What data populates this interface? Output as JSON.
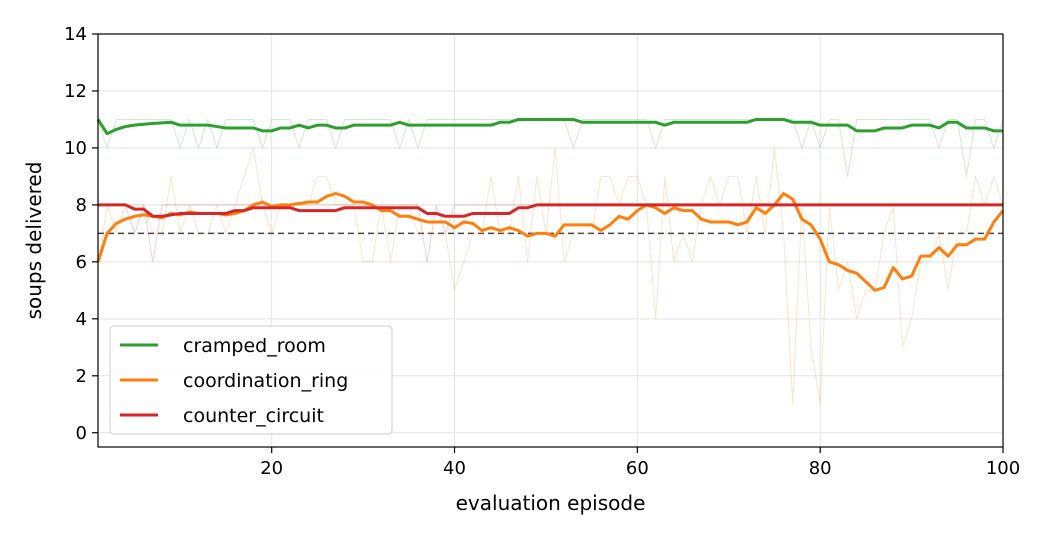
{
  "chart_data": {
    "type": "line",
    "title": "",
    "xlabel": "evaluation episode",
    "ylabel": "soups delivered",
    "xlim": [
      1,
      100
    ],
    "ylim": [
      -0.5,
      14
    ],
    "xticks": [
      20,
      40,
      60,
      80,
      100
    ],
    "yticks": [
      0,
      2,
      4,
      6,
      8,
      10,
      12,
      14
    ],
    "grid": true,
    "legend_position": "lower-left",
    "reference_line": {
      "y": 7,
      "style": "dashed",
      "color": "#444444"
    },
    "x": [
      1,
      2,
      3,
      4,
      5,
      6,
      7,
      8,
      9,
      10,
      11,
      12,
      13,
      14,
      15,
      16,
      17,
      18,
      19,
      20,
      21,
      22,
      23,
      24,
      25,
      26,
      27,
      28,
      29,
      30,
      31,
      32,
      33,
      34,
      35,
      36,
      37,
      38,
      39,
      40,
      41,
      42,
      43,
      44,
      45,
      46,
      47,
      48,
      49,
      50,
      51,
      52,
      53,
      54,
      55,
      56,
      57,
      58,
      59,
      60,
      61,
      62,
      63,
      64,
      65,
      66,
      67,
      68,
      69,
      70,
      71,
      72,
      73,
      74,
      75,
      76,
      77,
      78,
      79,
      80,
      81,
      82,
      83,
      84,
      85,
      86,
      87,
      88,
      89,
      90,
      91,
      92,
      93,
      94,
      95,
      96,
      97,
      98,
      99,
      100
    ],
    "series": [
      {
        "name": "cramped_room",
        "color": "#2ca02c",
        "smoothed": [
          11.0,
          10.5,
          10.65,
          10.75,
          10.8,
          10.83,
          10.86,
          10.88,
          10.9,
          10.8,
          10.8,
          10.8,
          10.8,
          10.75,
          10.7,
          10.7,
          10.7,
          10.7,
          10.6,
          10.6,
          10.7,
          10.7,
          10.8,
          10.7,
          10.8,
          10.8,
          10.7,
          10.7,
          10.8,
          10.8,
          10.8,
          10.8,
          10.8,
          10.9,
          10.8,
          10.8,
          10.8,
          10.8,
          10.8,
          10.8,
          10.8,
          10.8,
          10.8,
          10.8,
          10.9,
          10.9,
          11.0,
          11.0,
          11.0,
          11.0,
          11.0,
          11.0,
          11.0,
          10.9,
          10.9,
          10.9,
          10.9,
          10.9,
          10.9,
          10.9,
          10.9,
          10.9,
          10.8,
          10.9,
          10.9,
          10.9,
          10.9,
          10.9,
          10.9,
          10.9,
          10.9,
          10.9,
          11.0,
          11.0,
          11.0,
          11.0,
          10.9,
          10.9,
          10.9,
          10.8,
          10.8,
          10.8,
          10.8,
          10.6,
          10.6,
          10.6,
          10.7,
          10.7,
          10.7,
          10.8,
          10.8,
          10.8,
          10.7,
          10.9,
          10.9,
          10.7,
          10.7,
          10.7,
          10.6,
          10.6
        ],
        "raw": [
          11,
          10,
          11,
          11,
          11,
          11,
          11,
          11,
          11,
          10,
          11,
          10,
          11,
          10,
          11,
          11,
          11,
          11,
          10,
          11,
          11,
          11,
          10,
          11,
          11,
          11,
          10,
          11,
          11,
          11,
          11,
          11,
          11,
          10,
          11,
          10,
          11,
          11,
          11,
          11,
          11,
          11,
          11,
          11,
          11,
          11,
          11,
          11,
          11,
          11,
          11,
          11,
          10,
          11,
          11,
          11,
          11,
          11,
          11,
          11,
          11,
          10,
          11,
          11,
          11,
          11,
          11,
          11,
          11,
          11,
          11,
          11,
          11,
          11,
          11,
          11,
          11,
          10,
          11,
          10,
          11,
          11,
          9,
          11,
          11,
          11,
          11,
          11,
          11,
          11,
          11,
          11,
          10,
          11,
          11,
          9,
          11,
          11,
          10,
          11
        ]
      },
      {
        "name": "coordination_ring",
        "color": "#ff7f0e",
        "smoothed": [
          6.0,
          7.0,
          7.35,
          7.5,
          7.6,
          7.65,
          7.6,
          7.55,
          7.7,
          7.65,
          7.75,
          7.7,
          7.7,
          7.7,
          7.65,
          7.7,
          7.8,
          8.0,
          8.1,
          7.95,
          8.0,
          8.0,
          8.05,
          8.1,
          8.1,
          8.3,
          8.4,
          8.3,
          8.1,
          8.1,
          8.0,
          7.8,
          7.8,
          7.6,
          7.6,
          7.5,
          7.4,
          7.4,
          7.4,
          7.2,
          7.4,
          7.35,
          7.1,
          7.2,
          7.1,
          7.2,
          7.1,
          6.9,
          7.0,
          7.0,
          6.9,
          7.3,
          7.3,
          7.3,
          7.3,
          7.1,
          7.3,
          7.6,
          7.5,
          7.8,
          8.0,
          7.9,
          7.7,
          7.9,
          7.8,
          7.8,
          7.5,
          7.4,
          7.4,
          7.4,
          7.3,
          7.4,
          7.9,
          7.7,
          8.0,
          8.4,
          8.2,
          7.5,
          7.3,
          6.8,
          6.0,
          5.9,
          5.7,
          5.6,
          5.3,
          5.0,
          5.1,
          5.8,
          5.4,
          5.5,
          6.2,
          6.2,
          6.5,
          6.2,
          6.6,
          6.6,
          6.8,
          6.8,
          7.4,
          7.8
        ],
        "raw": [
          6,
          8,
          7,
          8,
          8,
          8,
          7,
          7,
          9,
          7,
          8,
          7,
          7,
          8,
          7,
          8,
          9,
          10,
          8,
          7,
          8,
          8,
          8,
          8,
          9,
          9,
          8,
          8,
          8,
          6,
          6,
          8,
          6,
          8,
          8,
          7,
          7,
          7,
          7,
          5,
          6,
          7,
          7,
          9,
          7,
          7,
          9,
          6,
          9,
          7,
          10,
          6,
          7,
          7,
          7,
          9,
          9,
          8,
          9,
          9,
          8,
          4,
          9,
          6,
          7,
          6,
          8,
          9,
          8,
          9,
          9,
          7,
          9,
          7,
          10,
          7,
          1,
          8,
          3,
          1,
          8,
          5,
          6,
          4,
          5,
          5,
          7,
          8,
          3,
          4,
          6,
          6,
          7,
          5,
          7,
          7,
          9,
          8,
          9,
          8
        ]
      },
      {
        "name": "counter_circuit",
        "color": "#d62728",
        "smoothed": [
          8.0,
          8.0,
          8.0,
          8.0,
          7.85,
          7.85,
          7.6,
          7.6,
          7.65,
          7.7,
          7.7,
          7.7,
          7.7,
          7.7,
          7.7,
          7.8,
          7.8,
          7.9,
          7.9,
          7.9,
          7.9,
          7.9,
          7.8,
          7.8,
          7.8,
          7.8,
          7.8,
          7.9,
          7.9,
          7.9,
          7.9,
          7.9,
          7.9,
          7.9,
          7.9,
          7.9,
          7.7,
          7.7,
          7.6,
          7.6,
          7.6,
          7.7,
          7.7,
          7.7,
          7.7,
          7.7,
          7.9,
          7.9,
          8.0,
          8.0,
          8.0,
          8.0,
          8.0,
          8.0,
          8.0,
          8.0,
          8.0,
          8.0,
          8.0,
          8.0,
          8.0,
          8.0,
          8.0,
          8.0,
          8.0,
          8.0,
          8.0,
          8.0,
          8.0,
          8.0,
          8.0,
          8.0,
          8.0,
          8.0,
          8.0,
          8.0,
          8.0,
          8.0,
          8.0,
          8.0,
          8.0,
          8.0,
          8.0,
          8.0,
          8.0,
          8.0,
          8.0,
          8.0,
          8.0,
          8.0,
          8.0,
          8.0,
          8.0,
          8.0,
          8.0,
          8.0,
          8.0,
          8.0,
          8.0,
          8.0
        ],
        "raw": [
          8,
          8,
          8,
          8,
          7,
          8,
          6,
          8,
          8,
          8,
          8,
          8,
          8,
          8,
          8,
          8,
          8,
          8,
          8,
          8,
          8,
          8,
          8,
          8,
          8,
          8,
          8,
          8,
          8,
          8,
          8,
          8,
          8,
          8,
          8,
          8,
          6,
          8,
          7,
          8,
          8,
          8,
          8,
          8,
          8,
          8,
          8,
          8,
          8,
          8,
          8,
          8,
          8,
          8,
          8,
          8,
          8,
          8,
          8,
          8,
          8,
          8,
          8,
          8,
          8,
          8,
          8,
          8,
          8,
          8,
          8,
          8,
          8,
          8,
          8,
          8,
          8,
          8,
          8,
          8,
          8,
          8,
          8,
          8,
          8,
          8,
          8,
          8,
          8,
          8,
          8,
          8,
          8,
          8,
          8,
          8,
          8,
          8,
          8,
          8
        ]
      }
    ]
  }
}
